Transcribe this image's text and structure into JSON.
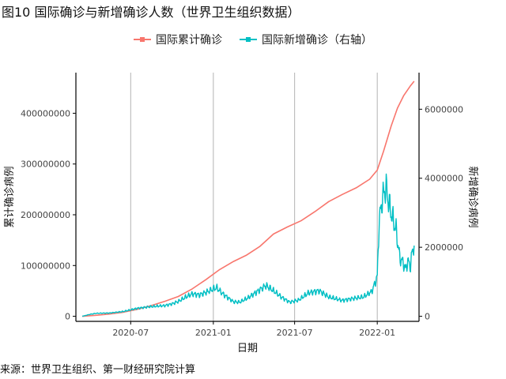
{
  "title": "图10 国际确诊与新增确诊人数（世界卫生组织数据）",
  "source": "来源：世界卫生组织、第一财经研究院计算",
  "colors": {
    "cumulative": "#F8766D",
    "new": "#00BFC4",
    "grid": "#b3b3b3",
    "axis": "#000000"
  },
  "chart_data": {
    "type": "line",
    "title": "图10 国际确诊与新增确诊人数（世界卫生组织数据）",
    "xlabel": "日期",
    "ylabel": "累计确诊病例",
    "y2label": "新增确诊病例",
    "xlim": [
      "2020-03-01",
      "2022-04-04"
    ],
    "ylim": [
      -10000000,
      480000000
    ],
    "y2lim": [
      -147000,
      7060000
    ],
    "x_ticks": [
      {
        "date": "2020-07-01",
        "label": "2020-07"
      },
      {
        "date": "2021-01-01",
        "label": "2021-01"
      },
      {
        "date": "2021-07-01",
        "label": "2021-07"
      },
      {
        "date": "2022-01-01",
        "label": "2022-01"
      }
    ],
    "y_ticks": [
      {
        "value": 0,
        "label": "0"
      },
      {
        "value": 100000000,
        "label": "100000000"
      },
      {
        "value": 200000000,
        "label": "200000000"
      },
      {
        "value": 300000000,
        "label": "300000000"
      },
      {
        "value": 400000000,
        "label": "400000000"
      }
    ],
    "y2_ticks": [
      {
        "value": 0,
        "label": "0"
      },
      {
        "value": 2000000,
        "label": "2000000"
      },
      {
        "value": 4000000,
        "label": "4000000"
      },
      {
        "value": 6000000,
        "label": "6000000"
      }
    ],
    "grid": "vertical major lines",
    "legend_position": "top",
    "series": [
      {
        "name": "国际累计确诊",
        "axis": "left",
        "points": [
          [
            "2020-03-15",
            0
          ],
          [
            "2020-04-15",
            2000000
          ],
          [
            "2020-05-15",
            4500000
          ],
          [
            "2020-06-15",
            8000000
          ],
          [
            "2020-07-15",
            13500000
          ],
          [
            "2020-08-15",
            21000000
          ],
          [
            "2020-09-15",
            29500000
          ],
          [
            "2020-10-15",
            39000000
          ],
          [
            "2020-11-15",
            54000000
          ],
          [
            "2020-12-15",
            72000000
          ],
          [
            "2021-01-15",
            92000000
          ],
          [
            "2021-02-15",
            108000000
          ],
          [
            "2021-03-15",
            120000000
          ],
          [
            "2021-04-15",
            138000000
          ],
          [
            "2021-05-15",
            162000000
          ],
          [
            "2021-06-15",
            176000000
          ],
          [
            "2021-07-15",
            188000000
          ],
          [
            "2021-08-15",
            206000000
          ],
          [
            "2021-09-15",
            226000000
          ],
          [
            "2021-10-15",
            240000000
          ],
          [
            "2021-11-15",
            253000000
          ],
          [
            "2021-12-15",
            270000000
          ],
          [
            "2022-01-01",
            288000000
          ],
          [
            "2022-01-15",
            325000000
          ],
          [
            "2022-02-01",
            375000000
          ],
          [
            "2022-02-15",
            410000000
          ],
          [
            "2022-03-01",
            435000000
          ],
          [
            "2022-03-15",
            453000000
          ],
          [
            "2022-03-24",
            463000000
          ]
        ]
      },
      {
        "name": "国际新增确诊（右轴）",
        "axis": "right",
        "points": [
          [
            "2020-03-15",
            0
          ],
          [
            "2020-04-01",
            55000
          ],
          [
            "2020-04-15",
            85000
          ],
          [
            "2020-05-15",
            95000
          ],
          [
            "2020-06-15",
            140000
          ],
          [
            "2020-07-15",
            230000
          ],
          [
            "2020-08-15",
            280000
          ],
          [
            "2020-09-15",
            310000
          ],
          [
            "2020-10-01",
            360000
          ],
          [
            "2020-10-15",
            430000
          ],
          [
            "2020-11-01",
            560000
          ],
          [
            "2020-11-15",
            650000
          ],
          [
            "2020-12-01",
            620000
          ],
          [
            "2020-12-15",
            690000
          ],
          [
            "2021-01-08",
            830000
          ],
          [
            "2021-01-25",
            620000
          ],
          [
            "2021-02-15",
            420000
          ],
          [
            "2021-03-01",
            410000
          ],
          [
            "2021-03-20",
            540000
          ],
          [
            "2021-04-10",
            730000
          ],
          [
            "2021-04-28",
            890000
          ],
          [
            "2021-05-15",
            740000
          ],
          [
            "2021-06-01",
            560000
          ],
          [
            "2021-06-20",
            410000
          ],
          [
            "2021-07-10",
            470000
          ],
          [
            "2021-08-01",
            680000
          ],
          [
            "2021-08-25",
            740000
          ],
          [
            "2021-09-15",
            560000
          ],
          [
            "2021-10-15",
            460000
          ],
          [
            "2021-11-10",
            520000
          ],
          [
            "2021-12-01",
            560000
          ],
          [
            "2021-12-20",
            720000
          ],
          [
            "2022-01-01",
            1150000
          ],
          [
            "2022-01-05",
            2700000
          ],
          [
            "2022-01-12",
            3400000
          ],
          [
            "2022-01-20",
            3750000
          ],
          [
            "2022-01-28",
            3200000
          ],
          [
            "2022-02-05",
            2800000
          ],
          [
            "2022-02-12",
            2500000
          ],
          [
            "2022-02-20",
            1700000
          ],
          [
            "2022-02-28",
            1550000
          ],
          [
            "2022-03-05",
            1350000
          ],
          [
            "2022-03-10",
            1600000
          ],
          [
            "2022-03-16",
            1450000
          ],
          [
            "2022-03-20",
            1900000
          ],
          [
            "2022-03-24",
            2050000
          ]
        ]
      }
    ]
  }
}
